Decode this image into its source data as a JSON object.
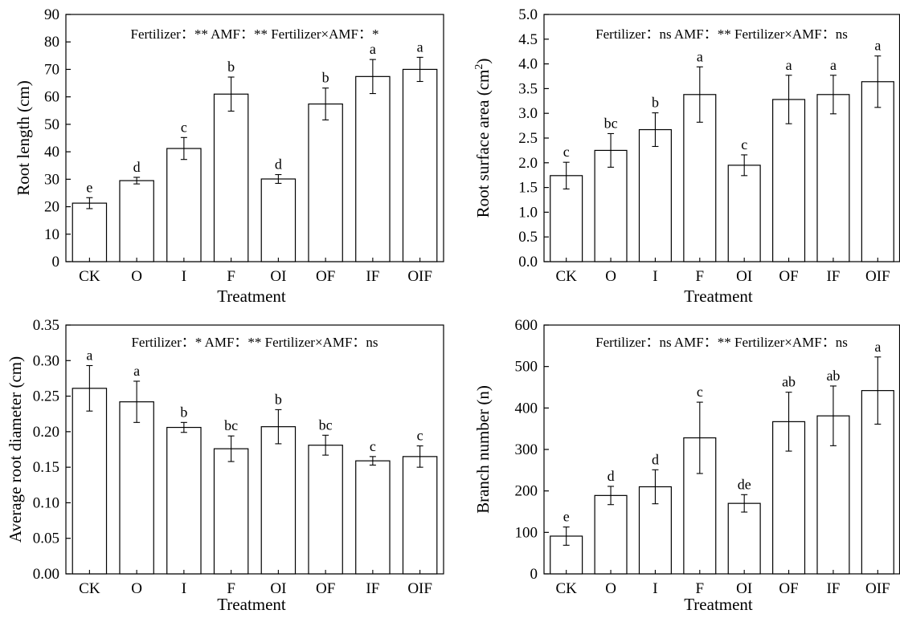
{
  "chart_data": [
    {
      "type": "bar",
      "categories": [
        "CK",
        "O",
        "I",
        "F",
        "OI",
        "OF",
        "IF",
        "OIF"
      ],
      "values": [
        21.3,
        29.5,
        41.2,
        61.0,
        30.1,
        57.4,
        67.4,
        70.0
      ],
      "errors": [
        2.0,
        1.2,
        4.0,
        6.2,
        1.6,
        5.8,
        6.2,
        4.4
      ],
      "letters": [
        "e",
        "d",
        "c",
        "b",
        "d",
        "b",
        "a",
        "a"
      ],
      "annotation": "Fertilizer：** AMF：** Fertilizer×AMF：*",
      "xlabel": "Treatment",
      "ylabel": "Root length (cm)",
      "ylim": [
        0,
        90
      ],
      "yticks": [
        0,
        10,
        20,
        30,
        40,
        50,
        60,
        70,
        80,
        90
      ],
      "yticklabels": [
        "0",
        "10",
        "20",
        "30",
        "40",
        "50",
        "60",
        "70",
        "80",
        "90"
      ]
    },
    {
      "type": "bar",
      "categories": [
        "CK",
        "O",
        "I",
        "F",
        "OI",
        "OF",
        "IF",
        "OIF"
      ],
      "values": [
        1.74,
        2.25,
        2.67,
        3.38,
        1.95,
        3.28,
        3.38,
        3.64
      ],
      "errors": [
        0.27,
        0.34,
        0.34,
        0.56,
        0.21,
        0.49,
        0.39,
        0.52
      ],
      "letters": [
        "c",
        "bc",
        "b",
        "a",
        "c",
        "a",
        "a",
        "a"
      ],
      "annotation": "Fertilizer：ns AMF：** Fertilizer×AMF：ns",
      "xlabel": "Treatment",
      "ylabel": "Root surface area (cm2)",
      "ylim": [
        0,
        5.0
      ],
      "yticks": [
        0,
        0.5,
        1.0,
        1.5,
        2.0,
        2.5,
        3.0,
        3.5,
        4.0,
        4.5,
        5.0
      ],
      "yticklabels": [
        "0.0",
        "0.5",
        "1.0",
        "1.5",
        "2.0",
        "2.5",
        "3.0",
        "3.5",
        "4.0",
        "4.5",
        "5.0"
      ]
    },
    {
      "type": "bar",
      "categories": [
        "CK",
        "O",
        "I",
        "F",
        "OI",
        "OF",
        "IF",
        "OIF"
      ],
      "values": [
        0.261,
        0.242,
        0.206,
        0.176,
        0.207,
        0.181,
        0.159,
        0.165
      ],
      "errors": [
        0.032,
        0.029,
        0.007,
        0.018,
        0.024,
        0.014,
        0.006,
        0.015
      ],
      "letters": [
        "a",
        "a",
        "b",
        "bc",
        "b",
        "bc",
        "c",
        "c"
      ],
      "annotation": "Fertilizer：* AMF：** Fertilizer×AMF：ns",
      "xlabel": "Treatment",
      "ylabel": "Average root diameter (cm)",
      "ylim": [
        0,
        0.35
      ],
      "yticks": [
        0,
        0.05,
        0.1,
        0.15,
        0.2,
        0.25,
        0.3,
        0.35
      ],
      "yticklabels": [
        "0.00",
        "0.05",
        "0.10",
        "0.15",
        "0.20",
        "0.25",
        "0.30",
        "0.35"
      ]
    },
    {
      "type": "bar",
      "categories": [
        "CK",
        "O",
        "I",
        "F",
        "OI",
        "OF",
        "IF",
        "OIF"
      ],
      "values": [
        91,
        189,
        210,
        328,
        170,
        367,
        381,
        442
      ],
      "errors": [
        22,
        22,
        41,
        86,
        21,
        71,
        72,
        81
      ],
      "letters": [
        "e",
        "d",
        "d",
        "c",
        "de",
        "ab",
        "ab",
        "a"
      ],
      "annotation": "Fertilizer：ns AMF：** Fertilizer×AMF：ns",
      "xlabel": "Treatment",
      "ylabel": "Branch number (n)",
      "ylim": [
        0,
        600
      ],
      "yticks": [
        0,
        100,
        200,
        300,
        400,
        500,
        600
      ],
      "yticklabels": [
        "0",
        "100",
        "200",
        "300",
        "400",
        "500",
        "600"
      ]
    }
  ]
}
